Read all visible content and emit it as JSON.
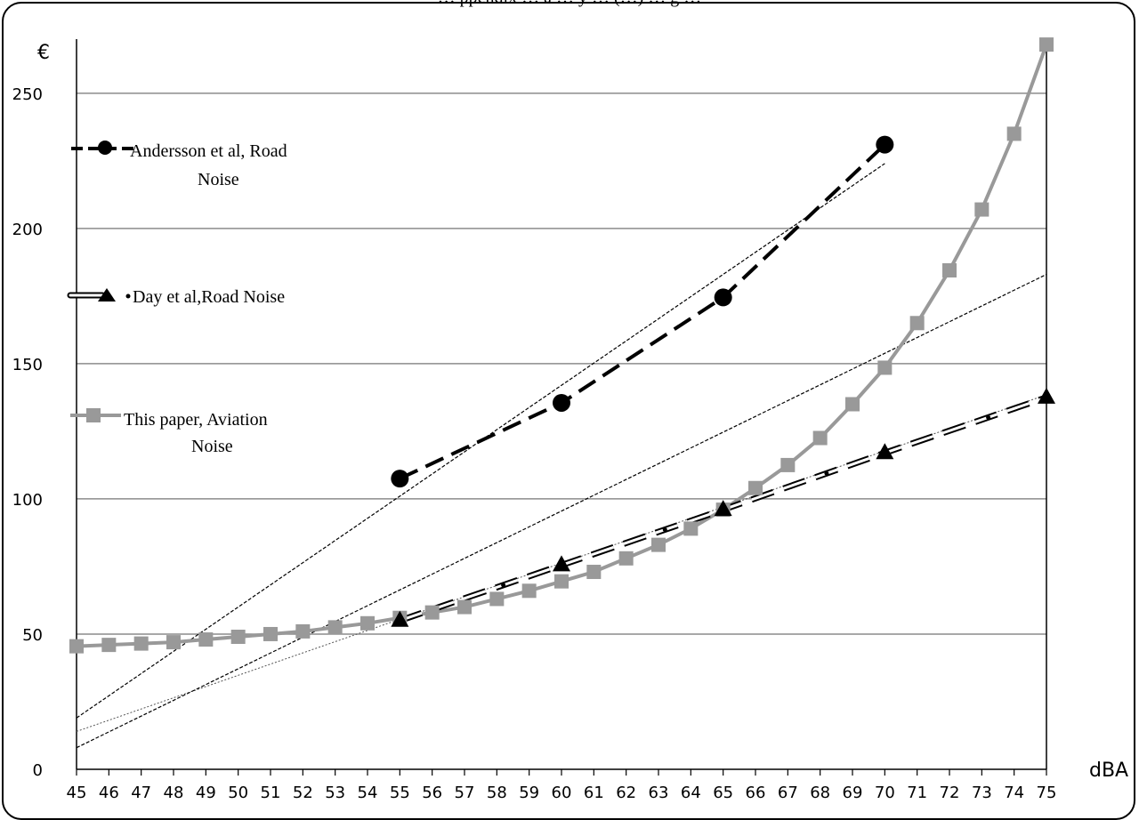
{
  "caption": "… ppendix … a … y … (…) … g …",
  "chart_data": {
    "type": "line",
    "title": "",
    "ylabel": "€",
    "xlabel": "dBA",
    "xlim": [
      45,
      75
    ],
    "ylim": [
      0,
      270
    ],
    "yticks": [
      0,
      50,
      100,
      150,
      200,
      250
    ],
    "grid": "horizontal",
    "legend_position": "left",
    "x": [
      45,
      46,
      47,
      48,
      49,
      50,
      51,
      52,
      53,
      54,
      55,
      56,
      57,
      58,
      59,
      60,
      61,
      62,
      63,
      64,
      65,
      66,
      67,
      68,
      69,
      70,
      71,
      72,
      73,
      74,
      75
    ],
    "series": [
      {
        "name": "Andersson et al, Road Noise",
        "color": "#000000",
        "style": "dashed-circle",
        "points": [
          [
            55,
            107.5
          ],
          [
            60,
            135.5
          ],
          [
            65,
            174.5
          ],
          [
            70,
            231
          ]
        ],
        "trend": [
          [
            45,
            19
          ],
          [
            70,
            224
          ]
        ]
      },
      {
        "name": "Day et al,Road Noise",
        "color": "#000000",
        "style": "double-line-triangle",
        "points": [
          [
            55,
            55
          ],
          [
            60,
            75.5
          ],
          [
            65,
            96
          ],
          [
            70,
            117
          ],
          [
            75,
            137.5
          ]
        ],
        "trend": [
          [
            45,
            14
          ],
          [
            75,
            138.5
          ]
        ]
      },
      {
        "name": "This paper, Aviation Noise",
        "color": "#999999",
        "style": "solid-square",
        "points": [
          [
            45,
            45.5
          ],
          [
            46,
            46
          ],
          [
            47,
            46.5
          ],
          [
            48,
            47
          ],
          [
            49,
            48
          ],
          [
            50,
            49
          ],
          [
            51,
            50
          ],
          [
            52,
            51
          ],
          [
            53,
            52.5
          ],
          [
            54,
            54
          ],
          [
            55,
            56
          ],
          [
            56,
            58
          ],
          [
            57,
            60
          ],
          [
            58,
            63
          ],
          [
            59,
            66
          ],
          [
            60,
            69.5
          ],
          [
            61,
            73
          ],
          [
            62,
            78
          ],
          [
            63,
            83
          ],
          [
            64,
            89
          ],
          [
            65,
            96
          ],
          [
            66,
            104
          ],
          [
            67,
            112.5
          ],
          [
            68,
            122.5
          ],
          [
            69,
            135
          ],
          [
            70,
            148.5
          ],
          [
            71,
            165
          ],
          [
            72,
            184.5
          ],
          [
            73,
            207
          ],
          [
            74,
            235
          ],
          [
            75,
            268
          ]
        ],
        "trend": [
          [
            45,
            8
          ],
          [
            75,
            183
          ]
        ]
      }
    ],
    "legend": {
      "andersson": [
        "Andersson et al, Road",
        "Noise"
      ],
      "day": [
        "Day et al,Road Noise"
      ],
      "this_paper": [
        "This paper, Aviation",
        "Noise"
      ]
    }
  }
}
